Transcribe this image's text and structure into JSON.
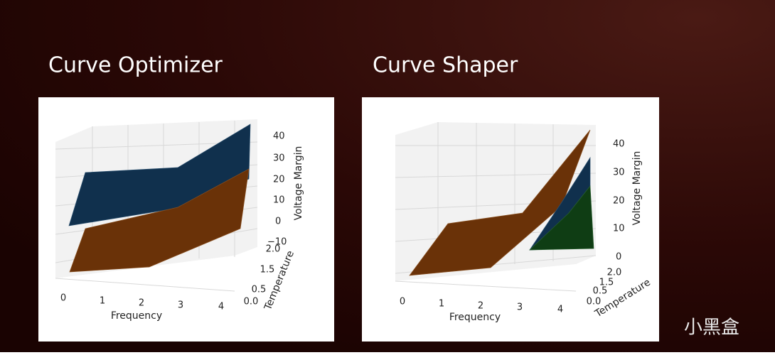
{
  "slide": {
    "panels": [
      {
        "title": "Curve Optimizer",
        "plot": {
          "x_label": "Frequency",
          "y_label": "Temperature",
          "z_label": "Voltage Margin",
          "x_ticks": [
            "0",
            "1",
            "2",
            "3",
            "4"
          ],
          "y_ticks": [
            "0.0",
            "0.5",
            "1.5",
            "2.0"
          ],
          "z_ticks": [
            "−10",
            "0",
            "10",
            "20",
            "30",
            "40"
          ]
        }
      },
      {
        "title": "Curve Shaper",
        "plot": {
          "x_label": "Frequency",
          "y_label": "Temperature",
          "z_label": "Voltage Margin",
          "x_ticks": [
            "0",
            "1",
            "2",
            "3",
            "4"
          ],
          "y_ticks": [
            "0.0",
            "0.5",
            "1.5",
            "2.0"
          ],
          "z_ticks": [
            "0",
            "10",
            "20",
            "30",
            "40"
          ]
        }
      }
    ],
    "watermark": "小黑盒"
  }
}
